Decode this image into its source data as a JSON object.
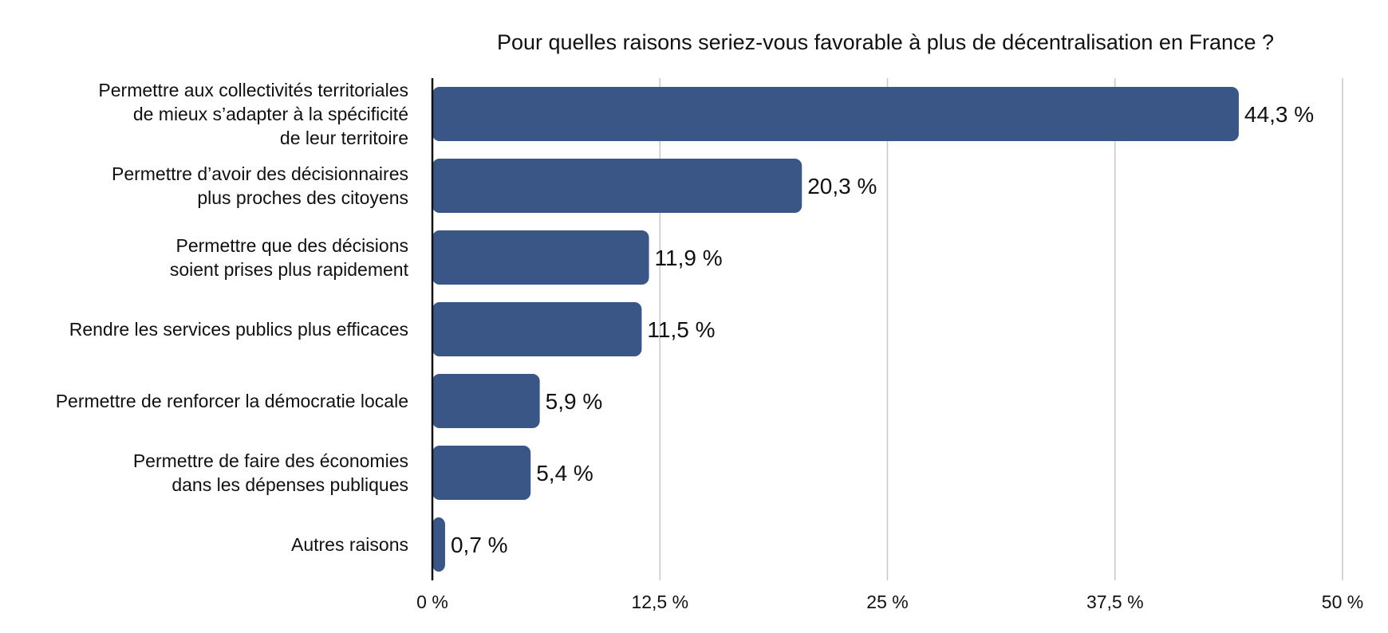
{
  "chart_data": {
    "type": "bar",
    "orientation": "horizontal",
    "title": "Pour quelles raisons seriez-vous favorable à plus de décentralisation en France ?",
    "xlabel": "",
    "ylabel": "",
    "xlim": [
      0,
      50
    ],
    "grid": true,
    "ticks": [
      {
        "value": 0,
        "label": "0 %"
      },
      {
        "value": 12.5,
        "label": "12,5 %"
      },
      {
        "value": 25,
        "label": "25 %"
      },
      {
        "value": 37.5,
        "label": "37,5 %"
      },
      {
        "value": 50,
        "label": "50 %"
      }
    ],
    "bar_color": "#3a5686",
    "categories": [
      [
        "Permettre aux collectivités territoriales",
        "de mieux s’adapter à la spécificité",
        "de leur territoire"
      ],
      [
        "Permettre d’avoir des décisionnaires",
        "plus proches des citoyens"
      ],
      [
        "Permettre que des décisions",
        "soient prises plus rapidement"
      ],
      [
        "Rendre les services publics plus efficaces"
      ],
      [
        "Permettre de renforcer la démocratie locale"
      ],
      [
        "Permettre de faire des économies",
        "dans les dépenses publiques"
      ],
      [
        "Autres raisons"
      ]
    ],
    "values": [
      44.3,
      20.3,
      11.9,
      11.5,
      5.9,
      5.4,
      0.7
    ],
    "value_labels": [
      "44,3 %",
      "20,3 %",
      "11,9 %",
      "11,5 %",
      "5,9 %",
      "5,4 %",
      "0,7 %"
    ]
  }
}
